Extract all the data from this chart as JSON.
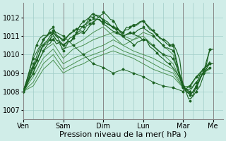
{
  "background_color": "#d0ede8",
  "plot_bg_color": "#d0ede8",
  "grid_color": "#a0ccc8",
  "line_color_dark": "#1a6020",
  "line_color_light": "#4a9050",
  "marker_color": "#1a6020",
  "ylim": [
    1006.5,
    1012.8
  ],
  "yticks": [
    1007,
    1008,
    1009,
    1010,
    1011,
    1012
  ],
  "xlabel": "Pression niveau de la mer( hPa )",
  "xlabel_fontsize": 8,
  "tick_fontsize": 7,
  "day_labels": [
    "Ven",
    "Sam",
    "Dim",
    "Lun",
    "Mar",
    "Me"
  ],
  "day_positions": [
    0,
    24,
    48,
    72,
    96,
    114
  ],
  "xlim": [
    0,
    120
  ],
  "series": [
    [
      0,
      1008.0,
      6,
      1009.3,
      12,
      1010.5,
      18,
      1011.2,
      24,
      1010.8,
      30,
      1011.3,
      36,
      1011.5,
      42,
      1012.0,
      48,
      1011.8,
      54,
      1011.5,
      60,
      1011.2,
      66,
      1011.6,
      72,
      1011.8,
      78,
      1011.3,
      84,
      1010.8,
      90,
      1010.5,
      96,
      1008.2,
      100,
      1007.8,
      104,
      1008.3,
      108,
      1009.0,
      112,
      1010.3
    ],
    [
      0,
      1008.0,
      6,
      1009.0,
      12,
      1010.2,
      18,
      1010.8,
      24,
      1010.5,
      30,
      1010.9,
      36,
      1011.8,
      42,
      1012.2,
      48,
      1011.9,
      54,
      1011.5,
      60,
      1011.0,
      66,
      1011.2,
      72,
      1011.5,
      78,
      1011.0,
      84,
      1010.5,
      90,
      1010.2,
      96,
      1008.3,
      100,
      1008.0,
      104,
      1008.5,
      108,
      1009.2,
      112,
      1009.5
    ],
    [
      0,
      1008.1,
      6,
      1009.5,
      12,
      1010.8,
      18,
      1011.5,
      24,
      1010.2,
      30,
      1011.0,
      36,
      1011.2,
      42,
      1011.7,
      48,
      1012.3,
      54,
      1011.8,
      60,
      1011.0,
      66,
      1010.5,
      72,
      1010.8,
      78,
      1010.5,
      84,
      1010.0,
      90,
      1009.8,
      96,
      1008.3,
      100,
      1007.5,
      104,
      1008.2,
      108,
      1009.0,
      112,
      1009.3
    ],
    [
      0,
      1008.0,
      6,
      1009.2,
      12,
      1010.5,
      18,
      1011.0,
      24,
      1010.3,
      30,
      1010.5,
      36,
      1010.8,
      42,
      1011.2,
      48,
      1011.5,
      54,
      1011.0,
      60,
      1010.5,
      66,
      1010.8,
      72,
      1011.2,
      78,
      1011.0,
      84,
      1010.5,
      90,
      1010.0,
      96,
      1008.2,
      100,
      1008.0,
      104,
      1008.5,
      108,
      1009.0,
      112,
      1009.5
    ],
    [
      0,
      1008.0,
      6,
      1009.0,
      12,
      1010.2,
      18,
      1010.6,
      24,
      1009.8,
      30,
      1010.3,
      36,
      1010.5,
      42,
      1010.8,
      48,
      1011.0,
      54,
      1011.2,
      60,
      1011.0,
      66,
      1010.8,
      72,
      1011.0,
      78,
      1010.5,
      84,
      1010.0,
      90,
      1009.5,
      96,
      1008.3,
      100,
      1008.2,
      104,
      1008.8,
      108,
      1009.2,
      112,
      1009.5
    ],
    [
      0,
      1008.0,
      6,
      1008.8,
      12,
      1009.8,
      18,
      1010.3,
      24,
      1009.5,
      30,
      1009.8,
      36,
      1010.0,
      42,
      1010.3,
      48,
      1010.5,
      54,
      1010.8,
      60,
      1010.5,
      66,
      1010.2,
      72,
      1010.0,
      78,
      1009.8,
      84,
      1009.5,
      90,
      1009.2,
      96,
      1008.2,
      100,
      1008.3,
      104,
      1008.8,
      108,
      1009.0,
      112,
      1009.3
    ],
    [
      0,
      1008.0,
      6,
      1008.5,
      12,
      1009.5,
      18,
      1010.0,
      24,
      1009.2,
      30,
      1009.5,
      36,
      1009.8,
      42,
      1010.0,
      48,
      1010.2,
      54,
      1010.5,
      60,
      1010.2,
      66,
      1010.0,
      72,
      1009.8,
      78,
      1009.5,
      84,
      1009.2,
      90,
      1009.0,
      96,
      1008.2,
      100,
      1008.3,
      104,
      1008.8,
      108,
      1009.0,
      112,
      1009.2
    ],
    [
      0,
      1008.0,
      6,
      1008.3,
      12,
      1009.2,
      18,
      1009.7,
      24,
      1009.0,
      30,
      1009.3,
      36,
      1009.5,
      42,
      1009.8,
      48,
      1010.0,
      54,
      1010.2,
      60,
      1010.0,
      66,
      1009.8,
      72,
      1009.5,
      78,
      1009.2,
      84,
      1009.0,
      90,
      1008.8,
      96,
      1008.2,
      100,
      1008.3,
      104,
      1008.8,
      108,
      1009.0,
      112,
      1009.0
    ],
    [
      0,
      1008.0,
      6,
      1009.8,
      12,
      1010.8,
      18,
      1011.3,
      24,
      1011.0,
      30,
      1010.5,
      36,
      1010.0,
      42,
      1009.5,
      48,
      1009.3,
      54,
      1009.0,
      60,
      1009.2,
      66,
      1009.0,
      72,
      1008.8,
      78,
      1008.5,
      84,
      1008.3,
      90,
      1008.2,
      96,
      1008.0,
      100,
      1008.3,
      104,
      1008.8,
      108,
      1009.2,
      112,
      1009.5
    ]
  ],
  "wiggly_series": [
    {
      "x": [
        0,
        2,
        4,
        6,
        8,
        10,
        12,
        14,
        16,
        18,
        20,
        22,
        24,
        26,
        28,
        30,
        32,
        34,
        36,
        38,
        40,
        42,
        44,
        46,
        48,
        50,
        52,
        54,
        56,
        58,
        60,
        62,
        64,
        66,
        68,
        70,
        72,
        74,
        76,
        78,
        80,
        82,
        84,
        86,
        88,
        90,
        92,
        94,
        96,
        98,
        100,
        102,
        104,
        106,
        108,
        110,
        112,
        114
      ],
      "y": [
        1008.05,
        1008.3,
        1008.8,
        1009.3,
        1009.7,
        1010.1,
        1010.5,
        1010.6,
        1010.8,
        1011.2,
        1011.0,
        1010.9,
        1010.8,
        1010.9,
        1011.1,
        1011.3,
        1011.4,
        1011.5,
        1011.5,
        1011.7,
        1011.9,
        1012.0,
        1012.1,
        1012.05,
        1011.8,
        1011.7,
        1011.6,
        1011.5,
        1011.4,
        1011.3,
        1011.2,
        1011.4,
        1011.5,
        1011.6,
        1011.7,
        1011.8,
        1011.8,
        1011.6,
        1011.4,
        1011.3,
        1011.1,
        1010.9,
        1010.8,
        1010.6,
        1010.5,
        1010.5,
        1010.2,
        1009.8,
        1008.2,
        1008.0,
        1007.8,
        1008.0,
        1008.3,
        1008.6,
        1009.0,
        1009.5,
        1010.3,
        1010.3
      ],
      "style": "wiggly"
    },
    {
      "x": [
        0,
        2,
        4,
        6,
        8,
        10,
        12,
        14,
        16,
        18,
        20,
        22,
        24,
        26,
        28,
        30,
        32,
        34,
        36,
        38,
        40,
        42,
        44,
        46,
        48,
        50,
        52,
        54,
        56,
        58,
        60,
        62,
        64,
        66,
        68,
        70,
        72,
        74,
        76,
        78,
        80,
        82,
        84,
        86,
        88,
        90,
        92,
        94,
        96,
        98,
        100,
        102,
        104,
        106,
        108,
        110,
        112,
        114
      ],
      "y": [
        1008.05,
        1008.5,
        1009.2,
        1010.0,
        1010.5,
        1010.8,
        1011.0,
        1011.1,
        1011.2,
        1011.0,
        1010.8,
        1010.7,
        1010.5,
        1010.7,
        1010.9,
        1011.1,
        1011.2,
        1011.3,
        1011.3,
        1011.5,
        1011.7,
        1011.8,
        1011.9,
        1011.85,
        1011.7,
        1011.5,
        1011.4,
        1011.3,
        1011.2,
        1011.1,
        1011.0,
        1011.1,
        1011.2,
        1011.1,
        1011.0,
        1010.9,
        1010.8,
        1010.7,
        1010.5,
        1010.3,
        1010.1,
        1009.9,
        1009.8,
        1009.6,
        1009.5,
        1009.3,
        1009.0,
        1008.7,
        1008.2,
        1008.1,
        1007.9,
        1007.7,
        1008.0,
        1008.3,
        1008.8,
        1009.2,
        1009.5,
        1009.5
      ],
      "style": "wiggly"
    }
  ]
}
